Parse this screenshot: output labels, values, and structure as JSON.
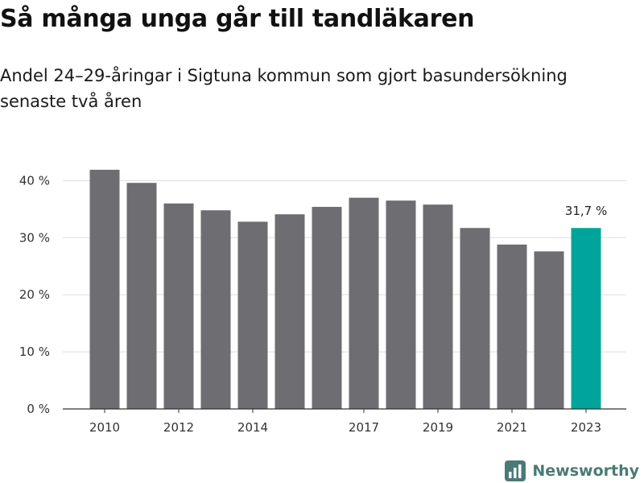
{
  "header": {
    "title": "Så många unga går till tandläkaren",
    "subtitle": "Andel 24–29-åringar i Sigtuna kommun som gjort basundersökning senaste två åren"
  },
  "brand": {
    "name": "Newsworthy",
    "color": "#4a7a76"
  },
  "colors": {
    "bar": "#6e6d72",
    "highlight": "#00a49a",
    "grid": "#dddddd",
    "axis": "#333333"
  },
  "chart_data": {
    "type": "bar",
    "title": "Så många unga går till tandläkaren",
    "subtitle": "Andel 24–29-åringar i Sigtuna kommun som gjort basundersökning senaste två åren",
    "xlabel": "",
    "ylabel": "",
    "categories": [
      "2010",
      "2011",
      "2012",
      "2013",
      "2014",
      "2015",
      "2016",
      "2017",
      "2018",
      "2019",
      "2020",
      "2021",
      "2022",
      "2023"
    ],
    "values": [
      41.9,
      39.6,
      36.0,
      34.8,
      32.8,
      34.1,
      35.4,
      37.0,
      36.5,
      35.8,
      31.7,
      28.8,
      27.6,
      31.7
    ],
    "x_tick_labels": [
      "2010",
      "2012",
      "2014",
      "2017",
      "2019",
      "2021",
      "2023"
    ],
    "y_ticks": [
      0,
      10,
      20,
      30,
      40
    ],
    "y_tick_labels": [
      "0 %",
      "10 %",
      "20 %",
      "30 %",
      "40 %"
    ],
    "ylim": [
      0,
      44
    ],
    "grid": true,
    "legend": "none",
    "highlight": {
      "category": "2023",
      "label": "31,7 %"
    }
  }
}
